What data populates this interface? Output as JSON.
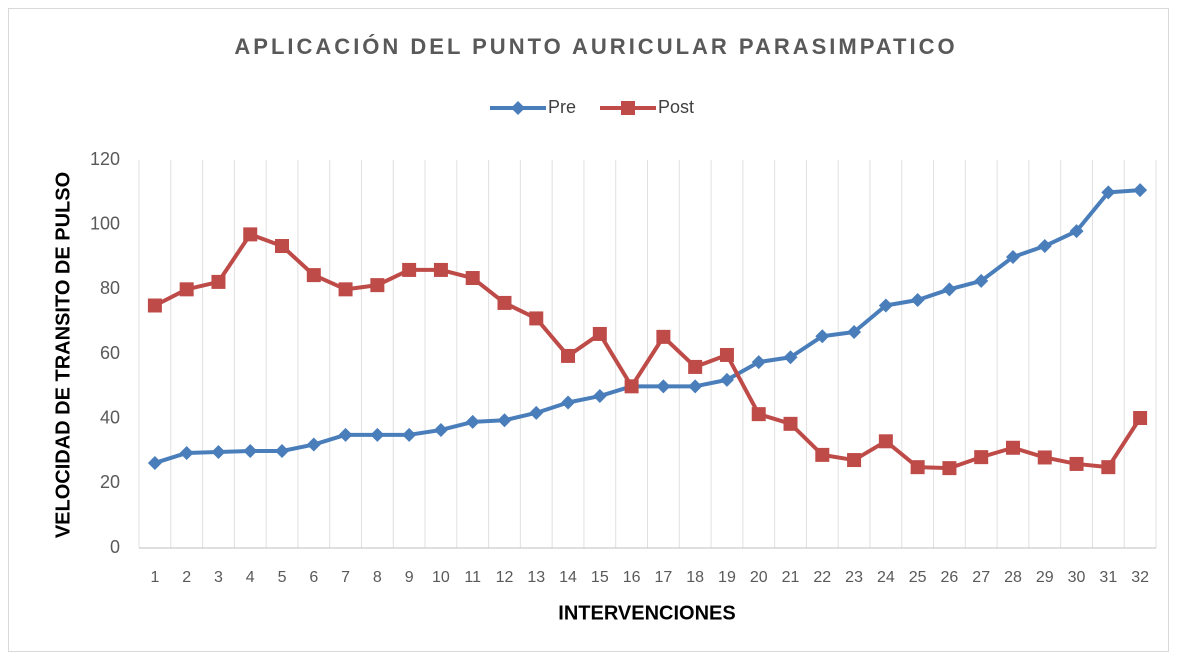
{
  "chart_data": {
    "type": "line",
    "title": "APLICACIÓN DEL PUNTO AURICULAR PARASIMPATICO",
    "x_label": "INTERVENCIONES",
    "y_label": "VELOCIDAD DE TRANSITO DE PULSO",
    "categories": [
      "1",
      "2",
      "3",
      "4",
      "5",
      "6",
      "7",
      "8",
      "9",
      "10",
      "11",
      "12",
      "13",
      "14",
      "15",
      "16",
      "17",
      "18",
      "19",
      "20",
      "21",
      "22",
      "23",
      "24",
      "25",
      "26",
      "27",
      "28",
      "29",
      "30",
      "31",
      "32"
    ],
    "series": [
      {
        "name": "Pre",
        "color": "#4a7ebb",
        "marker": "diamond",
        "values": [
          26.3,
          29.4,
          29.7,
          30,
          30,
          32,
          35,
          35,
          35,
          36.5,
          39,
          39.5,
          41.8,
          45,
          47,
          50,
          50,
          50,
          52,
          57.5,
          59,
          65.5,
          66.8,
          75,
          76.7,
          80,
          82.6,
          90,
          93.4,
          98,
          110,
          110.7
        ]
      },
      {
        "name": "Post",
        "color": "#be4b48",
        "marker": "square",
        "values": [
          75,
          80,
          82.3,
          97,
          93.4,
          84.4,
          80,
          81.3,
          86,
          86,
          83.5,
          75.8,
          71,
          59.4,
          66.2,
          50,
          65.3,
          56,
          59.7,
          41.4,
          38.4,
          28.8,
          27.2,
          33,
          25,
          24.7,
          28.1,
          31,
          28,
          26,
          25,
          40.2
        ]
      }
    ],
    "ylim": [
      0,
      120
    ],
    "yticks": [
      0,
      20,
      40,
      60,
      80,
      100,
      120
    ],
    "grid": true,
    "legend": "top"
  }
}
